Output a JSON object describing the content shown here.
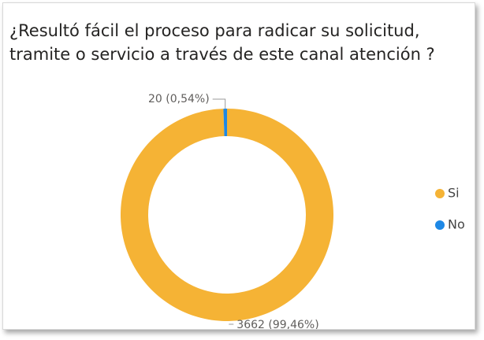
{
  "chart_data": {
    "type": "donut",
    "title": "¿Resultó fácil el proceso para radicar su solicitud, tramite o servicio a través de este canal atención ?",
    "categories": [
      "Si",
      "No"
    ],
    "values": [
      3662,
      20
    ],
    "value_labels": [
      "3662 (99,46%)",
      "20 (0,54%)"
    ],
    "colors": [
      "#F5B335",
      "#1E88E5"
    ],
    "legend": "right"
  }
}
